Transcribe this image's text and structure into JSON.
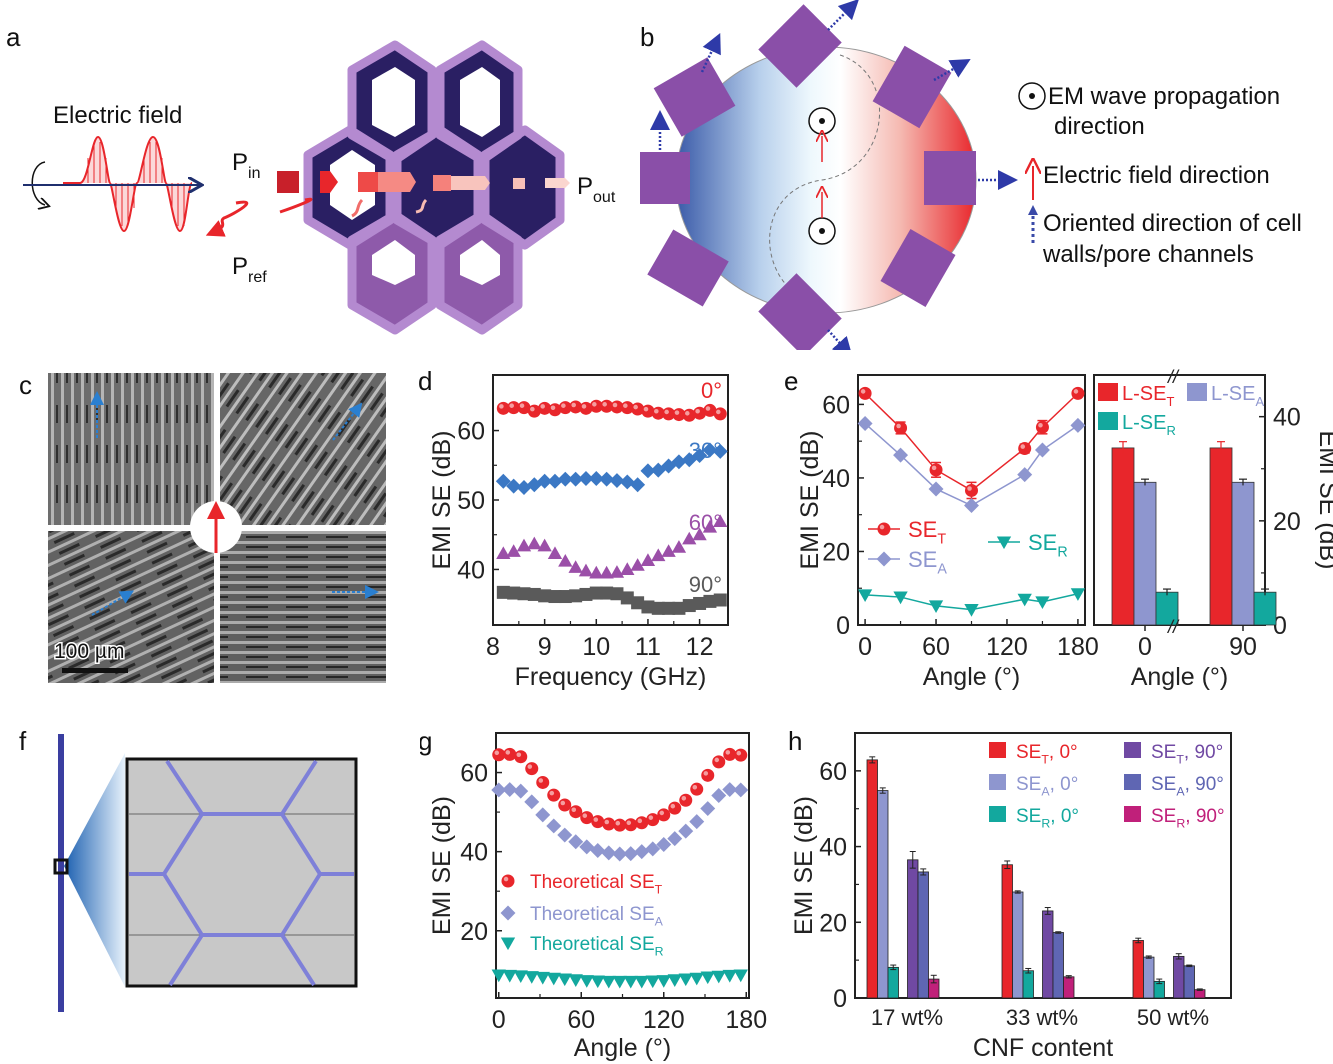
{
  "panels": {
    "a": {
      "label": "a",
      "title": "Electric field",
      "p_in": "P",
      "p_in_sub": "in",
      "p_out": "P",
      "p_out_sub": "out",
      "p_ref": "P",
      "p_ref_sub": "ref"
    },
    "b": {
      "label": "b",
      "legend": [
        {
          "icon": "em-propagation-dot-icon",
          "text_line1": "EM wave propagation",
          "text_line2": "direction"
        },
        {
          "icon": "red-arrow-icon",
          "text_line1": "Electric field direction",
          "text_line2": ""
        },
        {
          "icon": "blue-dotted-arrow-icon",
          "text_line1": "Oriented direction of cell",
          "text_line2": "walls/pore channels"
        }
      ]
    },
    "c": {
      "label": "c",
      "scale_bar": "100 µm"
    },
    "f": {
      "label": "f"
    }
  },
  "colors": {
    "red": "#e8262b",
    "blue": "#3b78c4",
    "purple": "#9b4fa8",
    "gray": "#5a5a5a",
    "lavender": "#8e96cf",
    "teal": "#13a89e",
    "violet": "#7049a3",
    "slate_blue": "#5f66b3",
    "magenta": "#c0207a"
  },
  "chart_data": [
    {
      "id": "d",
      "label": "d",
      "type": "scatter",
      "xlabel": "Frequency (GHz)",
      "ylabel": "EMI SE (dB)",
      "xlim": [
        8,
        12.55
      ],
      "ylim": [
        32,
        68
      ],
      "xticks": [
        8,
        9,
        10,
        11,
        12
      ],
      "yticks": [
        40,
        50,
        60
      ],
      "x": [
        8.2,
        8.4,
        8.6,
        8.8,
        9.0,
        9.2,
        9.4,
        9.6,
        9.8,
        10.0,
        10.2,
        10.4,
        10.6,
        10.8,
        11.0,
        11.2,
        11.4,
        11.6,
        11.8,
        12.0,
        12.2,
        12.4
      ],
      "series": [
        {
          "name": "0°",
          "marker": "circle",
          "color": "#e8262b",
          "values": [
            63.2,
            63.3,
            63.3,
            62.8,
            63.2,
            63.0,
            63.3,
            63.4,
            63.2,
            63.5,
            63.5,
            63.4,
            63.3,
            63.1,
            62.8,
            62.5,
            62.4,
            62.3,
            62.2,
            62.5,
            62.9,
            62.4
          ]
        },
        {
          "name": "30°",
          "marker": "diamond",
          "color": "#3b78c4",
          "values": [
            52.7,
            52.0,
            51.8,
            52.2,
            52.7,
            52.7,
            53.0,
            53.0,
            53.1,
            53.1,
            53.0,
            52.8,
            52.6,
            52.2,
            54.2,
            54.3,
            54.9,
            55.5,
            55.8,
            56.4,
            57.2,
            57.0
          ]
        },
        {
          "name": "60°",
          "marker": "triangle-up",
          "color": "#9b4fa8",
          "values": [
            42.3,
            42.6,
            43.4,
            43.7,
            43.4,
            42.3,
            41.2,
            40.3,
            39.8,
            39.5,
            39.5,
            39.6,
            40.0,
            40.6,
            41.3,
            42.0,
            42.6,
            43.2,
            44.4,
            45.0,
            46.1,
            46.9
          ]
        },
        {
          "name": "90°",
          "marker": "square",
          "color": "#5a5a5a",
          "values": [
            36.7,
            36.6,
            36.5,
            36.4,
            36.2,
            36.1,
            36.1,
            36.2,
            36.4,
            36.6,
            36.6,
            36.5,
            35.9,
            35.2,
            34.6,
            34.4,
            34.4,
            34.4,
            34.8,
            35.1,
            35.4,
            35.6
          ]
        }
      ]
    },
    {
      "id": "e-left",
      "label": "e",
      "type": "line",
      "xlabel": "Angle (°)",
      "ylabel": "EMI SE (dB)",
      "xlim": [
        -6,
        186
      ],
      "ylim": [
        0,
        68
      ],
      "xticks": [
        0,
        60,
        120,
        180
      ],
      "yticks": [
        0,
        20,
        40,
        60
      ],
      "x": [
        0,
        30,
        60,
        90,
        135,
        150,
        180
      ],
      "series": [
        {
          "name": "SE",
          "sub": "T",
          "marker": "circle",
          "color": "#e8262b",
          "values": [
            63.0,
            53.6,
            42.2,
            36.6,
            48.0,
            53.8,
            63.0
          ],
          "errors": [
            0.5,
            1.6,
            2.0,
            2.2,
            1.2,
            1.8,
            0.5
          ]
        },
        {
          "name": "SE",
          "sub": "A",
          "marker": "diamond",
          "color": "#8e96cf",
          "values": [
            54.8,
            46.2,
            37.0,
            32.5,
            40.9,
            47.6,
            54.3
          ],
          "errors": [
            0,
            0,
            0,
            0,
            0,
            0,
            0
          ]
        },
        {
          "name": "SE",
          "sub": "R",
          "marker": "triangle-down",
          "color": "#13a89e",
          "values": [
            8.2,
            7.6,
            5.2,
            4.2,
            7.0,
            6.3,
            8.5
          ],
          "errors": [
            0,
            0,
            0,
            0,
            0,
            0,
            0
          ]
        }
      ]
    },
    {
      "id": "e-right",
      "type": "bar",
      "xlabel": "Angle (°)",
      "ylabel": "EMI SE (dB)",
      "ylim": [
        0,
        48
      ],
      "yticks": [
        0,
        20,
        40
      ],
      "categories": [
        "0",
        "90"
      ],
      "axis_break": "//",
      "series": [
        {
          "name": "L-SE",
          "sub": "T",
          "color": "#e8262b",
          "values": [
            34.0,
            34.0
          ],
          "errors": [
            1.2,
            1.2
          ]
        },
        {
          "name": "L-SE",
          "sub": "A",
          "color": "#8e96cf",
          "values": [
            27.4,
            27.4
          ],
          "errors": [
            0.6,
            0.6
          ]
        },
        {
          "name": "L-SE",
          "sub": "R",
          "color": "#13a89e",
          "values": [
            6.3,
            6.3
          ],
          "errors": [
            0.6,
            0.6
          ]
        }
      ]
    },
    {
      "id": "g",
      "label": "g",
      "type": "scatter",
      "xlabel": "Angle (°)",
      "ylabel": "EMI SE (dB)",
      "xlim": [
        -2,
        182
      ],
      "ylim": [
        3,
        70
      ],
      "xticks": [
        0,
        60,
        120,
        180
      ],
      "yticks": [
        20,
        40,
        60
      ],
      "x": [
        0,
        8,
        16,
        24,
        32,
        40,
        48,
        56,
        64,
        72,
        80,
        88,
        96,
        104,
        112,
        120,
        128,
        136,
        144,
        152,
        160,
        168,
        176
      ],
      "series": [
        {
          "name": "Theoretical SE",
          "sub": "T",
          "marker": "circle",
          "color": "#e8262b",
          "values": [
            64.5,
            64.6,
            64.0,
            61.0,
            57.5,
            54.3,
            51.8,
            50.1,
            48.6,
            47.6,
            47.0,
            46.7,
            46.8,
            47.3,
            48.1,
            49.3,
            51.0,
            53.0,
            55.8,
            59.3,
            62.7,
            64.6,
            64.4
          ]
        },
        {
          "name": "Theoretical SE",
          "sub": "A",
          "marker": "diamond",
          "color": "#8e96cf",
          "values": [
            55.6,
            55.7,
            55.3,
            52.6,
            49.3,
            46.5,
            44.2,
            42.5,
            41.2,
            40.3,
            39.7,
            39.4,
            39.5,
            40.0,
            40.7,
            41.8,
            43.3,
            45.2,
            47.6,
            50.9,
            54.2,
            55.7,
            55.6
          ]
        },
        {
          "name": "Theoretical SE",
          "sub": "R",
          "marker": "triangle-down",
          "color": "#13a89e",
          "values": [
            8.8,
            8.7,
            8.6,
            8.4,
            8.2,
            8.0,
            7.8,
            7.6,
            7.4,
            7.3,
            7.2,
            7.2,
            7.2,
            7.2,
            7.3,
            7.4,
            7.6,
            7.8,
            8.0,
            8.3,
            8.5,
            8.7,
            8.8
          ]
        }
      ]
    },
    {
      "id": "h",
      "label": "h",
      "type": "bar",
      "xlabel": "CNF content",
      "ylabel": "EMI SE (dB)",
      "ylim": [
        0,
        70
      ],
      "yticks": [
        0,
        20,
        40,
        60
      ],
      "categories": [
        "17 wt%",
        "33 wt%",
        "50 wt%"
      ],
      "series": [
        {
          "name": "SE",
          "sub": "T",
          "suffix": ", 0°",
          "color": "#e8262b",
          "values": [
            62.9,
            35.2,
            15.2
          ],
          "errors": [
            0.8,
            1.0,
            0.6
          ]
        },
        {
          "name": "SE",
          "sub": "A",
          "suffix": ", 0°",
          "color": "#8e96cf",
          "values": [
            54.8,
            28.0,
            10.8
          ],
          "errors": [
            0.7,
            0.3,
            0.3
          ]
        },
        {
          "name": "SE",
          "sub": "R",
          "suffix": ", 0°",
          "color": "#13a89e",
          "values": [
            8.1,
            7.2,
            4.4
          ],
          "errors": [
            0.6,
            0.6,
            0.6
          ]
        },
        {
          "name": "SE",
          "sub": "T",
          "suffix": ", 90°",
          "color": "#7049a3",
          "values": [
            36.5,
            23.0,
            11.0
          ],
          "errors": [
            2.2,
            0.9,
            0.7
          ]
        },
        {
          "name": "SE",
          "sub": "A",
          "suffix": ", 90°",
          "color": "#5f66b3",
          "values": [
            33.3,
            17.3,
            8.5
          ],
          "errors": [
            0.8,
            0.2,
            0.2
          ]
        },
        {
          "name": "SE",
          "sub": "R",
          "suffix": ", 90°",
          "color": "#c0207a",
          "values": [
            5.0,
            5.6,
            2.2
          ],
          "errors": [
            1.0,
            0.3,
            0.2
          ]
        }
      ]
    }
  ]
}
